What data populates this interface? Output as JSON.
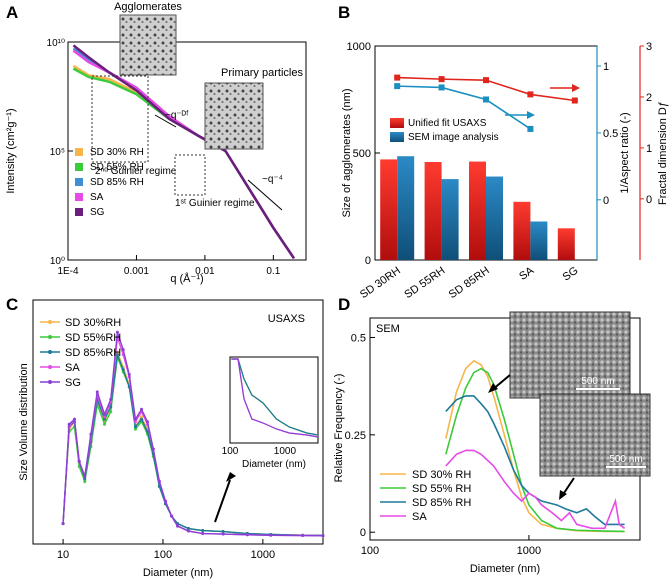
{
  "chart_data": [
    {
      "panel": "A",
      "type": "line",
      "xscale": "log",
      "yscale": "log",
      "xlabel": "q (Å⁻¹)",
      "ylabel": "Intensity (cm²g⁻¹)",
      "xlim": [
        0.0001,
        0.3
      ],
      "ylim": [
        1,
        10000000000
      ],
      "xticks": [
        "1E-4",
        "0.001",
        "0.01",
        "0.1"
      ],
      "yticks": [
        "10¹⁰",
        "10⁵",
        "10⁰"
      ],
      "annotations": [
        "Agglomerates",
        "Primary particles",
        "~q⁻ᴰᶠ",
        "2ⁿᵈ Guinier regime",
        "1ˢᵗ Guinier regime",
        "~q⁻⁴"
      ],
      "series": [
        {
          "name": "SD 30% RH",
          "color": "#f6b64a",
          "x": [
            0.00012,
            0.0002,
            0.0004,
            0.001,
            0.003,
            0.008,
            0.02,
            0.05,
            0.1,
            0.2
          ],
          "y": [
            800000000,
            300000000,
            200000000,
            50000000,
            3000000,
            500000,
            100000,
            1000,
            30,
            1.2
          ]
        },
        {
          "name": "SD 55% RH",
          "color": "#3ccb3c",
          "x": [
            0.00012,
            0.0002,
            0.0004,
            0.001,
            0.003,
            0.008,
            0.02,
            0.05,
            0.1,
            0.2
          ],
          "y": [
            600000000,
            250000000,
            150000000,
            40000000,
            3000000,
            500000,
            100000,
            1000,
            30,
            1.2
          ]
        },
        {
          "name": "SD 85% RH",
          "color": "#3f8fd6",
          "x": [
            0.00012,
            0.0002,
            0.0004,
            0.001,
            0.003,
            0.008,
            0.02,
            0.05,
            0.1,
            0.2
          ],
          "y": [
            5000000000,
            1500000000,
            400000000,
            80000000,
            3500000,
            500000,
            100000,
            1000,
            30,
            1.2
          ]
        },
        {
          "name": "SA",
          "color": "#e64be6",
          "x": [
            0.00012,
            0.0002,
            0.0004,
            0.001,
            0.003,
            0.008,
            0.02,
            0.05,
            0.1,
            0.2
          ],
          "y": [
            4000000000,
            1200000000,
            400000000,
            80000000,
            4000000,
            500000,
            100000,
            1000,
            30,
            1.2
          ]
        },
        {
          "name": "SG",
          "color": "#6b1f7c",
          "x": [
            0.00012,
            0.0002,
            0.0004,
            0.001,
            0.003,
            0.008,
            0.02,
            0.05,
            0.1,
            0.2
          ],
          "y": [
            7000000000,
            2000000000,
            400000000,
            60000000,
            3000000,
            500000,
            100000,
            1000,
            30,
            1.2
          ]
        }
      ]
    },
    {
      "panel": "B",
      "type": "bar",
      "categories": [
        "SD 30RH",
        "SD 55RH",
        "SD 85RH",
        "SA",
        "SG"
      ],
      "ylabel": "Size of agglomerates (nm)",
      "ylabel_right1": "1/Aspect ratio (-)",
      "ylabel_right2": "Fractal dimension Dƒ",
      "ylim": [
        0,
        1000
      ],
      "yticks": [
        "0",
        "500",
        "1000"
      ],
      "right1_ticks": [
        "0",
        "0.5",
        "1"
      ],
      "right2_ticks": [
        "0",
        "1",
        "2",
        "3"
      ],
      "series": [
        {
          "name": "Unified fit USAXS",
          "color": "#d9261c",
          "values": [
            470,
            458,
            460,
            272,
            148
          ]
        },
        {
          "name": "SEM image analysis",
          "color": "#1f6e9c",
          "values": [
            485,
            378,
            390,
            180,
            null
          ]
        }
      ],
      "lines": [
        {
          "name": "Fractal dimension",
          "color": "#e0251c",
          "axis": "right2",
          "values": [
            2.38,
            2.35,
            2.33,
            2.05,
            1.93
          ]
        },
        {
          "name": "1/Aspect ratio",
          "color": "#1a8fc0",
          "axis": "right1",
          "values": [
            0.85,
            0.84,
            0.75,
            0.53,
            null
          ]
        }
      ]
    },
    {
      "panel": "C",
      "type": "line",
      "xscale": "log",
      "xlabel": "Diameter (nm)",
      "ylabel": "Size Volume distribution",
      "xlim": [
        5,
        4000
      ],
      "xticks": [
        "10",
        "100",
        "1000"
      ],
      "tag": "USAXS",
      "series": [
        {
          "name": "SD 30%RH",
          "color": "#f6b64a",
          "x": [
            10,
            11.5,
            13,
            14.5,
            16.5,
            19,
            22,
            26,
            30,
            35,
            40,
            46,
            53,
            61,
            70,
            80,
            92,
            106,
            122,
            140,
            180,
            250,
            400,
            700,
            1200,
            2500,
            4000
          ],
          "y": [
            0.05,
            0.43,
            0.46,
            0.3,
            0.22,
            0.37,
            0.55,
            0.46,
            0.52,
            0.74,
            0.68,
            0.61,
            0.44,
            0.48,
            0.43,
            0.33,
            0.2,
            0.13,
            0.08,
            0.05,
            0.03,
            0.022,
            0.018,
            0.01,
            0.006,
            0.003,
            0.002
          ]
        },
        {
          "name": "SD 55%RH",
          "color": "#3ccb3c",
          "x": [
            10,
            11.5,
            13,
            14.5,
            16.5,
            19,
            22,
            26,
            30,
            35,
            40,
            46,
            53,
            61,
            70,
            80,
            92,
            106,
            122,
            140,
            180,
            250,
            400,
            700,
            1200,
            2500,
            4000
          ],
          "y": [
            0.05,
            0.42,
            0.44,
            0.28,
            0.22,
            0.36,
            0.53,
            0.45,
            0.5,
            0.72,
            0.66,
            0.6,
            0.43,
            0.46,
            0.41,
            0.32,
            0.2,
            0.13,
            0.08,
            0.05,
            0.03,
            0.022,
            0.018,
            0.01,
            0.006,
            0.003,
            0.002
          ]
        },
        {
          "name": "SD 85%RH",
          "color": "#1f7a9c",
          "x": [
            10,
            11.5,
            13,
            14.5,
            16.5,
            19,
            22,
            26,
            30,
            35,
            40,
            46,
            53,
            61,
            70,
            80,
            92,
            106,
            122,
            140,
            180,
            250,
            400,
            700,
            1200,
            2500,
            4000
          ],
          "y": [
            0.05,
            0.44,
            0.46,
            0.3,
            0.23,
            0.38,
            0.55,
            0.47,
            0.52,
            0.73,
            0.67,
            0.6,
            0.44,
            0.47,
            0.42,
            0.33,
            0.2,
            0.13,
            0.08,
            0.05,
            0.03,
            0.022,
            0.018,
            0.01,
            0.006,
            0.003,
            0.002
          ]
        },
        {
          "name": "SA",
          "color": "#e64be6",
          "x": [
            10,
            11.5,
            13,
            14.5,
            16.5,
            19,
            22,
            26,
            30,
            35,
            40,
            46,
            53,
            61,
            70,
            80,
            92,
            106,
            122,
            140,
            180,
            250,
            400,
            700,
            1200,
            2500,
            4000
          ],
          "y": [
            0.05,
            0.44,
            0.47,
            0.3,
            0.24,
            0.4,
            0.57,
            0.48,
            0.54,
            0.8,
            0.73,
            0.64,
            0.46,
            0.5,
            0.45,
            0.35,
            0.22,
            0.14,
            0.08,
            0.04,
            0.02,
            0.01,
            0.008,
            0.005,
            0.003,
            0.002,
            0.001
          ]
        },
        {
          "name": "SG",
          "color": "#8c3fd6",
          "x": [
            10,
            11.5,
            13,
            14.5,
            16.5,
            19,
            22,
            26,
            30,
            35,
            40,
            46,
            53,
            61,
            70,
            80,
            92,
            106,
            122,
            140,
            180,
            250,
            400,
            700,
            1200,
            2500,
            4000
          ],
          "y": [
            0.05,
            0.45,
            0.47,
            0.3,
            0.24,
            0.41,
            0.58,
            0.49,
            0.55,
            0.82,
            0.75,
            0.65,
            0.47,
            0.51,
            0.46,
            0.35,
            0.22,
            0.14,
            0.08,
            0.04,
            0.02,
            0.01,
            0.008,
            0.005,
            0.003,
            0.002,
            0.001
          ]
        }
      ],
      "inset": {
        "xticks": [
          "100",
          "1000"
        ],
        "xlabel": "Diameter (nm)"
      }
    },
    {
      "panel": "D",
      "type": "line",
      "xscale": "log",
      "xlabel": "Diameter (nm)",
      "ylabel": "Relative Frequency (-)",
      "xlim": [
        100,
        5000
      ],
      "ylim": [
        -0.02,
        0.55
      ],
      "xticks": [
        "100",
        "1000"
      ],
      "yticks": [
        "0",
        "0.25",
        "0.5"
      ],
      "tag": "SEM",
      "scale_bars": [
        "500 nm",
        "500 nm"
      ],
      "series": [
        {
          "name": "SD 30% RH",
          "color": "#f6b64a",
          "x": [
            300,
            350,
            400,
            450,
            500,
            550,
            600,
            700,
            800,
            900,
            1000,
            1200,
            1500,
            2000,
            3000,
            4000
          ],
          "y": [
            0.24,
            0.36,
            0.42,
            0.44,
            0.43,
            0.4,
            0.35,
            0.25,
            0.16,
            0.09,
            0.05,
            0.02,
            0.01,
            0.004,
            0.002,
            0.002
          ]
        },
        {
          "name": "SD 55% RH",
          "color": "#3ccb3c",
          "x": [
            300,
            350,
            400,
            450,
            500,
            550,
            600,
            700,
            800,
            900,
            1000,
            1200,
            1500,
            2000,
            3000,
            4000
          ],
          "y": [
            0.2,
            0.3,
            0.37,
            0.41,
            0.42,
            0.41,
            0.38,
            0.29,
            0.2,
            0.12,
            0.07,
            0.03,
            0.01,
            0.005,
            0.003,
            0.002
          ]
        },
        {
          "name": "SD 85% RH",
          "color": "#1f7a9c",
          "x": [
            300,
            350,
            400,
            450,
            500,
            550,
            600,
            700,
            800,
            900,
            1000,
            1200,
            1500,
            1700,
            2000,
            2300,
            2600,
            3000,
            4000
          ],
          "y": [
            0.31,
            0.34,
            0.35,
            0.35,
            0.33,
            0.31,
            0.28,
            0.22,
            0.16,
            0.12,
            0.1,
            0.08,
            0.07,
            0.06,
            0.05,
            0.06,
            0.04,
            0.02,
            0.02
          ]
        },
        {
          "name": "SA",
          "color": "#e64be6",
          "x": [
            300,
            350,
            400,
            450,
            500,
            600,
            700,
            800,
            900,
            1000,
            1100,
            1200,
            1400,
            1600,
            1800,
            2000,
            2500,
            3000,
            3500,
            3700,
            4000
          ],
          "y": [
            0.17,
            0.2,
            0.21,
            0.21,
            0.2,
            0.17,
            0.13,
            0.1,
            0.08,
            0.1,
            0.09,
            0.07,
            0.05,
            0.03,
            0.05,
            0.02,
            0.01,
            0.01,
            0.08,
            0.02,
            0.01
          ]
        }
      ]
    }
  ]
}
